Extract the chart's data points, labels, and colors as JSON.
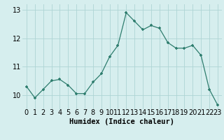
{
  "x": [
    0,
    1,
    2,
    3,
    4,
    5,
    6,
    7,
    8,
    9,
    10,
    11,
    12,
    13,
    14,
    15,
    16,
    17,
    18,
    19,
    20,
    21,
    22,
    23
  ],
  "y": [
    10.3,
    9.9,
    10.2,
    10.5,
    10.55,
    10.35,
    10.05,
    10.05,
    10.45,
    10.75,
    11.35,
    11.75,
    12.9,
    12.6,
    12.3,
    12.45,
    12.35,
    11.85,
    11.65,
    11.65,
    11.75,
    11.4,
    10.2,
    9.65
  ],
  "line_color": "#2e7d6e",
  "marker": "+",
  "background_color": "#d6eeee",
  "grid_color": "#aed4d4",
  "xlabel": "Humidex (Indice chaleur)",
  "xlabel_fontsize": 7.5,
  "tick_fontsize": 7,
  "ylim": [
    9.5,
    13.2
  ],
  "xlim": [
    -0.5,
    23.5
  ],
  "yticks": [
    10,
    11,
    12,
    13
  ],
  "xticks": [
    0,
    1,
    2,
    3,
    4,
    5,
    6,
    7,
    8,
    9,
    10,
    11,
    12,
    13,
    14,
    15,
    16,
    17,
    18,
    19,
    20,
    21,
    22,
    23
  ]
}
